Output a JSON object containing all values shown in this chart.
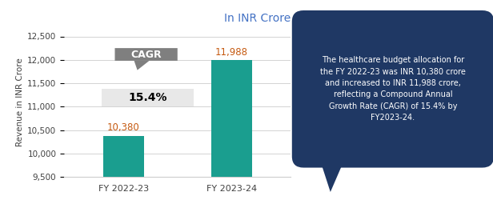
{
  "categories": [
    "FY 2022-23",
    "FY 2023-24"
  ],
  "values": [
    10380,
    11988
  ],
  "bar_color": "#1a9e8f",
  "title": "In INR Crore",
  "title_color": "#4472c4",
  "ylabel": "Revenue in INR Crore",
  "ylim": [
    9500,
    12700
  ],
  "yticks": [
    9500,
    10000,
    10500,
    11000,
    11500,
    12000,
    12500
  ],
  "value_labels": [
    "10,380",
    "11,988"
  ],
  "value_label_color": "#c55a11",
  "cagr_box_text": "CAGR",
  "cagr_box_bg": "#7f7f7f",
  "cagr_box_text_color": "white",
  "pct_box_text": "15.4%",
  "pct_box_bg": "#e8e8e8",
  "pct_box_text_color": "black",
  "bubble_bg": "#1f3864",
  "bubble_text": "The healthcare budget allocation for\nthe FY 2022-23 was INR 10,380 crore\nand increased to INR 11,988 crore,\nreflecting a Compound Annual\nGrowth Rate (CAGR) of 15.4% by\nFY2023-24.",
  "bubble_text_color": "white",
  "background_color": "#ffffff",
  "border_color": "#d0d0d0"
}
